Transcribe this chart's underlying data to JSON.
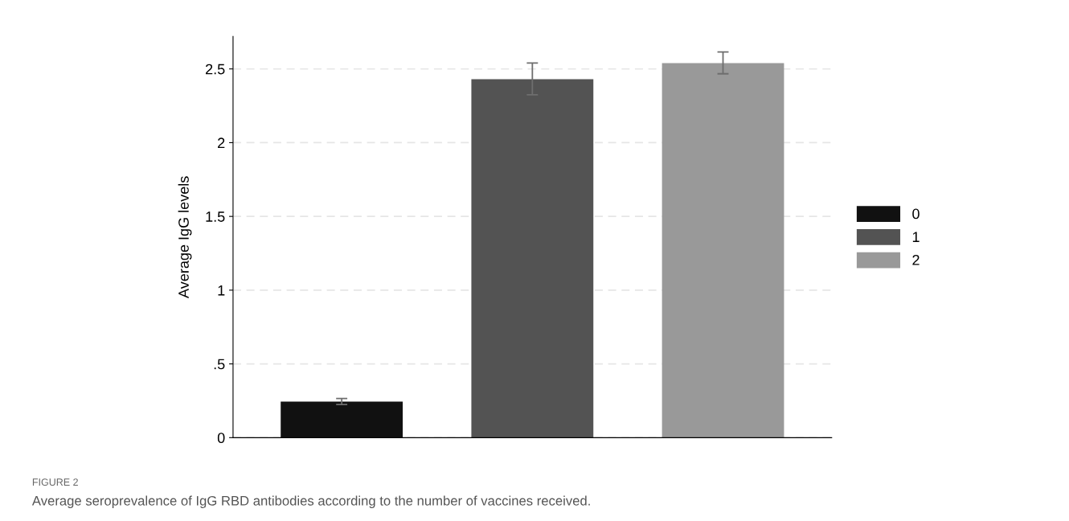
{
  "chart_data": {
    "type": "bar",
    "ylabel": "Average IgG levels",
    "categories": [
      null,
      null,
      null
    ],
    "series": [
      {
        "name": "0",
        "color": "#111111",
        "values": [
          0.245,
          null,
          null
        ],
        "errors": [
          0.02,
          null,
          null
        ]
      },
      {
        "name": "1",
        "color": "#535353",
        "values": [
          null,
          2.43,
          null
        ],
        "errors": [
          null,
          [
            2.325,
            2.54
          ],
          null
        ]
      },
      {
        "name": "2",
        "color": "#999999",
        "values": [
          null,
          null,
          2.54
        ],
        "errors": [
          null,
          null,
          [
            2.467,
            2.615
          ]
        ]
      }
    ],
    "ylim": [
      0,
      2.72
    ],
    "yticks": [
      0,
      {
        "value": 0.5,
        "label": ".5"
      },
      1,
      1.5,
      2,
      2.5
    ],
    "grid": "y",
    "legend": "right",
    "annotations": [
      "FIGURE 2",
      "Average seroprevalence of IgG RBD antibodies according to the number of vaccines received."
    ]
  }
}
